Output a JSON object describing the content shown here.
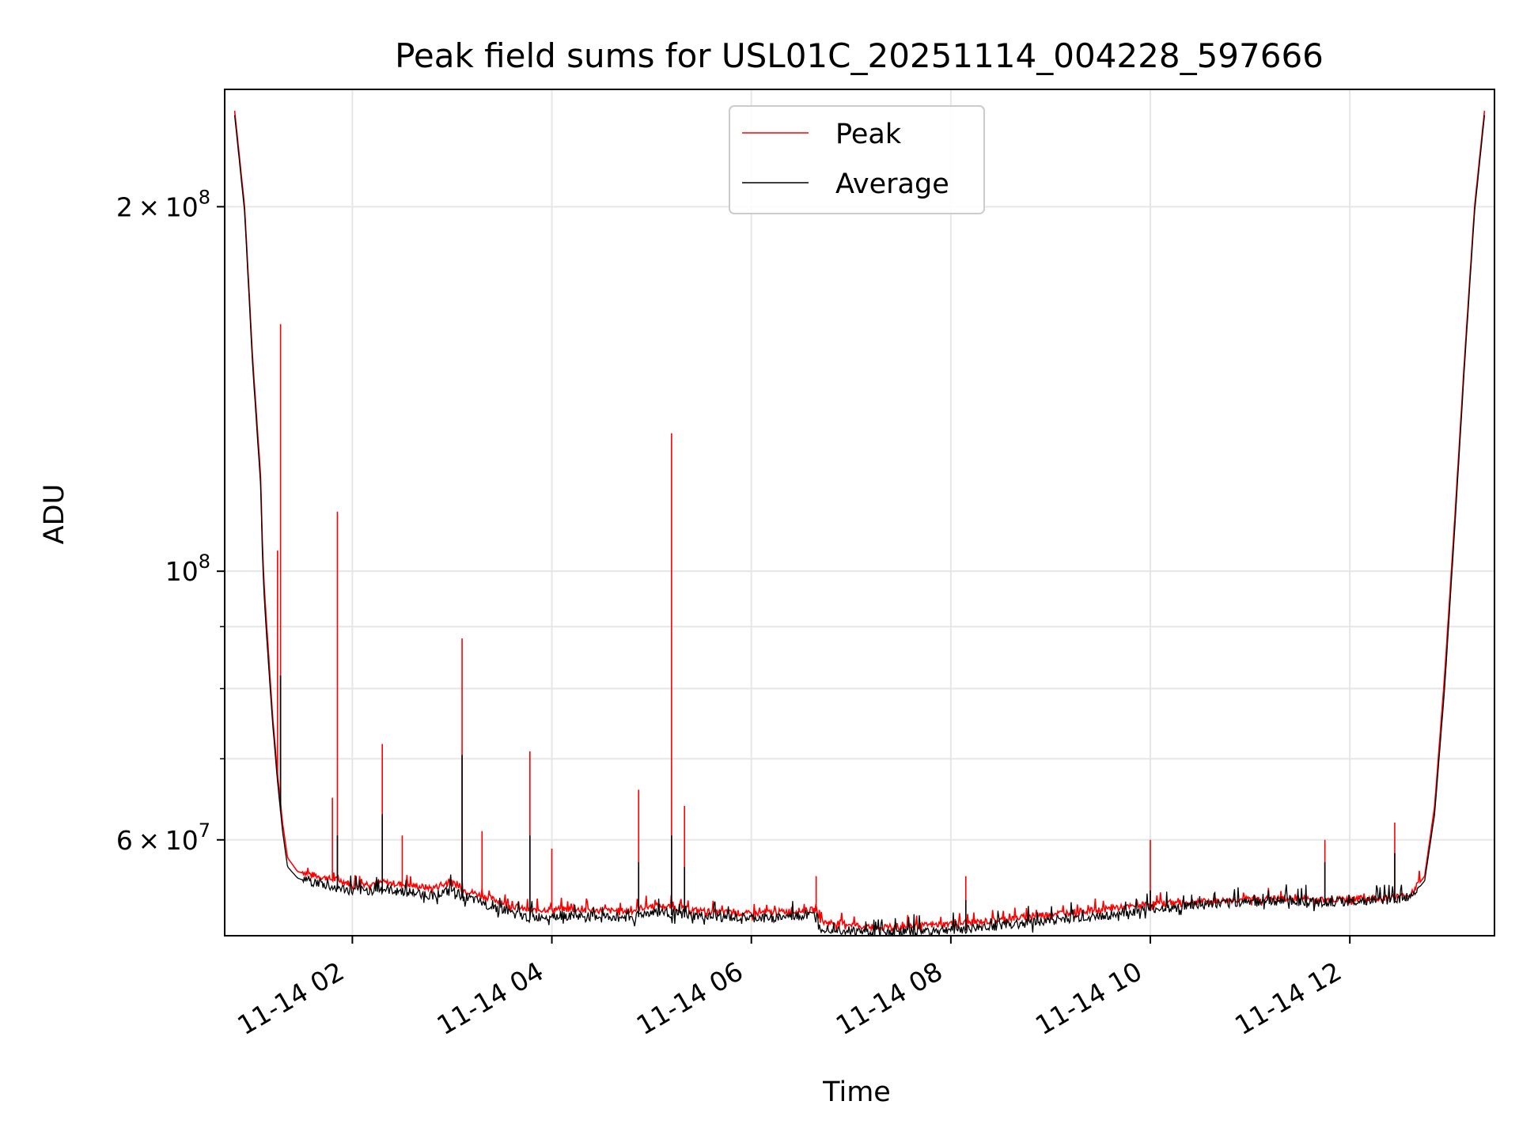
{
  "chart_data": {
    "type": "line",
    "title": "Peak field sums for USL01C_20251114_004228_597666",
    "xlabel": "Time",
    "ylabel": "ADU",
    "yscale": "log",
    "ylim": [
      50000000,
      250000000
    ],
    "xlim_hours": [
      0.72,
      13.45
    ],
    "grid": true,
    "legend": {
      "placement": "top-center",
      "entries": [
        "Peak",
        "Average"
      ]
    },
    "x_ticks": [
      {
        "value": 2,
        "label": "11-14 02"
      },
      {
        "value": 4,
        "label": "11-14 04"
      },
      {
        "value": 6,
        "label": "11-14 06"
      },
      {
        "value": 8,
        "label": "11-14 08"
      },
      {
        "value": 10,
        "label": "11-14 10"
      },
      {
        "value": 12,
        "label": "11-14 12"
      }
    ],
    "y_ticks_major": [
      {
        "value": 100000000,
        "base": "10",
        "exp": "8",
        "mantissa": ""
      },
      {
        "value": 200000000,
        "base": "10",
        "exp": "8",
        "mantissa": "2 × 10"
      },
      {
        "value": 60000000,
        "base": "10",
        "exp": "7",
        "mantissa": "6 × 10"
      }
    ],
    "y_ticks_minor": [
      70000000,
      80000000,
      90000000
    ],
    "series": [
      {
        "name": "Peak",
        "color": "#ff0000",
        "x": [
          0.82,
          0.92,
          1.0,
          1.08,
          1.1,
          1.12,
          1.15,
          1.2,
          1.25,
          1.3,
          1.35,
          1.45,
          1.6,
          1.8,
          1.85,
          2.0,
          2.3,
          2.5,
          2.8,
          3.0,
          3.1,
          3.4,
          3.7,
          3.8,
          4.0,
          4.3,
          4.6,
          4.8,
          4.9,
          5.0,
          5.2,
          5.3,
          5.6,
          6.0,
          6.3,
          6.65,
          6.7,
          7.0,
          7.2,
          7.5,
          7.8,
          8.0,
          8.15,
          8.5,
          9.0,
          9.5,
          9.8,
          10.0,
          10.3,
          10.7,
          11.0,
          11.5,
          11.75,
          12.0,
          12.3,
          12.45,
          12.6,
          12.75,
          12.85,
          12.95,
          13.05,
          13.15,
          13.25,
          13.35
        ],
        "y": [
          240000000,
          200000000,
          150000000,
          120000000,
          104000000,
          96000000,
          88000000,
          76000000,
          68000000,
          62000000,
          58000000,
          56500000,
          56000000,
          55500000,
          55500000,
          55000000,
          55200000,
          55000000,
          54600000,
          55200000,
          54500000,
          53500000,
          52500000,
          52300000,
          52500000,
          52400000,
          52300000,
          52300000,
          52600000,
          52800000,
          52700000,
          52500000,
          52200000,
          52000000,
          52200000,
          52400000,
          51200000,
          51000000,
          50600000,
          50700000,
          50900000,
          51000000,
          51100000,
          51400000,
          52000000,
          52400000,
          52700000,
          53000000,
          53100000,
          53300000,
          53500000,
          53500000,
          53400000,
          53500000,
          53600000,
          53700000,
          53900000,
          56000000,
          64000000,
          82000000,
          110000000,
          150000000,
          200000000,
          240000000
        ],
        "spikes": [
          {
            "x": 1.28,
            "y": 160000000
          },
          {
            "x": 1.25,
            "y": 104000000
          },
          {
            "x": 1.85,
            "y": 112000000
          },
          {
            "x": 2.3,
            "y": 72000000
          },
          {
            "x": 3.1,
            "y": 88000000
          },
          {
            "x": 3.78,
            "y": 71000000
          },
          {
            "x": 4.87,
            "y": 66000000
          },
          {
            "x": 5.2,
            "y": 130000000
          },
          {
            "x": 5.33,
            "y": 64000000
          },
          {
            "x": 1.8,
            "y": 65000000
          },
          {
            "x": 2.5,
            "y": 60500000
          },
          {
            "x": 3.3,
            "y": 61000000
          },
          {
            "x": 4.0,
            "y": 59000000
          },
          {
            "x": 6.65,
            "y": 56000000
          },
          {
            "x": 8.15,
            "y": 56000000
          },
          {
            "x": 10.0,
            "y": 60000000
          },
          {
            "x": 11.75,
            "y": 60000000
          },
          {
            "x": 12.45,
            "y": 62000000
          }
        ]
      },
      {
        "name": "Average",
        "color": "#000000",
        "x": [
          0.82,
          0.92,
          1.0,
          1.08,
          1.1,
          1.12,
          1.15,
          1.2,
          1.25,
          1.3,
          1.35,
          1.45,
          1.6,
          1.8,
          1.85,
          2.0,
          2.3,
          2.5,
          2.8,
          3.0,
          3.1,
          3.4,
          3.7,
          3.8,
          4.0,
          4.3,
          4.6,
          4.8,
          4.9,
          5.0,
          5.2,
          5.3,
          5.6,
          6.0,
          6.3,
          6.65,
          6.7,
          7.0,
          7.2,
          7.5,
          7.8,
          8.0,
          8.15,
          8.5,
          9.0,
          9.5,
          9.8,
          10.0,
          10.3,
          10.7,
          11.0,
          11.5,
          11.75,
          12.0,
          12.3,
          12.45,
          12.6,
          12.75,
          12.85,
          12.95,
          13.05,
          13.15,
          13.25,
          13.35
        ],
        "y": [
          238000000,
          198000000,
          148000000,
          118000000,
          102000000,
          94000000,
          86000000,
          75000000,
          67000000,
          61000000,
          57000000,
          55800000,
          55200000,
          54600000,
          54600000,
          54200000,
          54400000,
          54200000,
          53800000,
          54300000,
          53700000,
          52700000,
          51700000,
          51500000,
          51800000,
          51700000,
          51600000,
          51600000,
          51900000,
          52100000,
          52000000,
          51800000,
          51600000,
          51500000,
          51600000,
          51800000,
          50600000,
          50300000,
          50100000,
          50200000,
          50300000,
          50400000,
          50500000,
          50800000,
          51300000,
          51700000,
          52100000,
          52400000,
          52600000,
          52900000,
          53200000,
          53200000,
          53100000,
          53200000,
          53300000,
          53400000,
          53600000,
          55500000,
          63000000,
          80000000,
          108000000,
          148000000,
          198000000,
          238000000
        ],
        "spikes": [
          {
            "x": 1.28,
            "y": 82000000
          },
          {
            "x": 1.85,
            "y": 60500000
          },
          {
            "x": 2.3,
            "y": 63000000
          },
          {
            "x": 3.1,
            "y": 70500000
          },
          {
            "x": 3.78,
            "y": 60500000
          },
          {
            "x": 4.87,
            "y": 57500000
          },
          {
            "x": 5.2,
            "y": 60500000
          },
          {
            "x": 5.33,
            "y": 57000000
          },
          {
            "x": 8.15,
            "y": 53500000
          },
          {
            "x": 10.0,
            "y": 54500000
          },
          {
            "x": 11.75,
            "y": 57500000
          },
          {
            "x": 12.45,
            "y": 58500000
          }
        ]
      }
    ]
  }
}
